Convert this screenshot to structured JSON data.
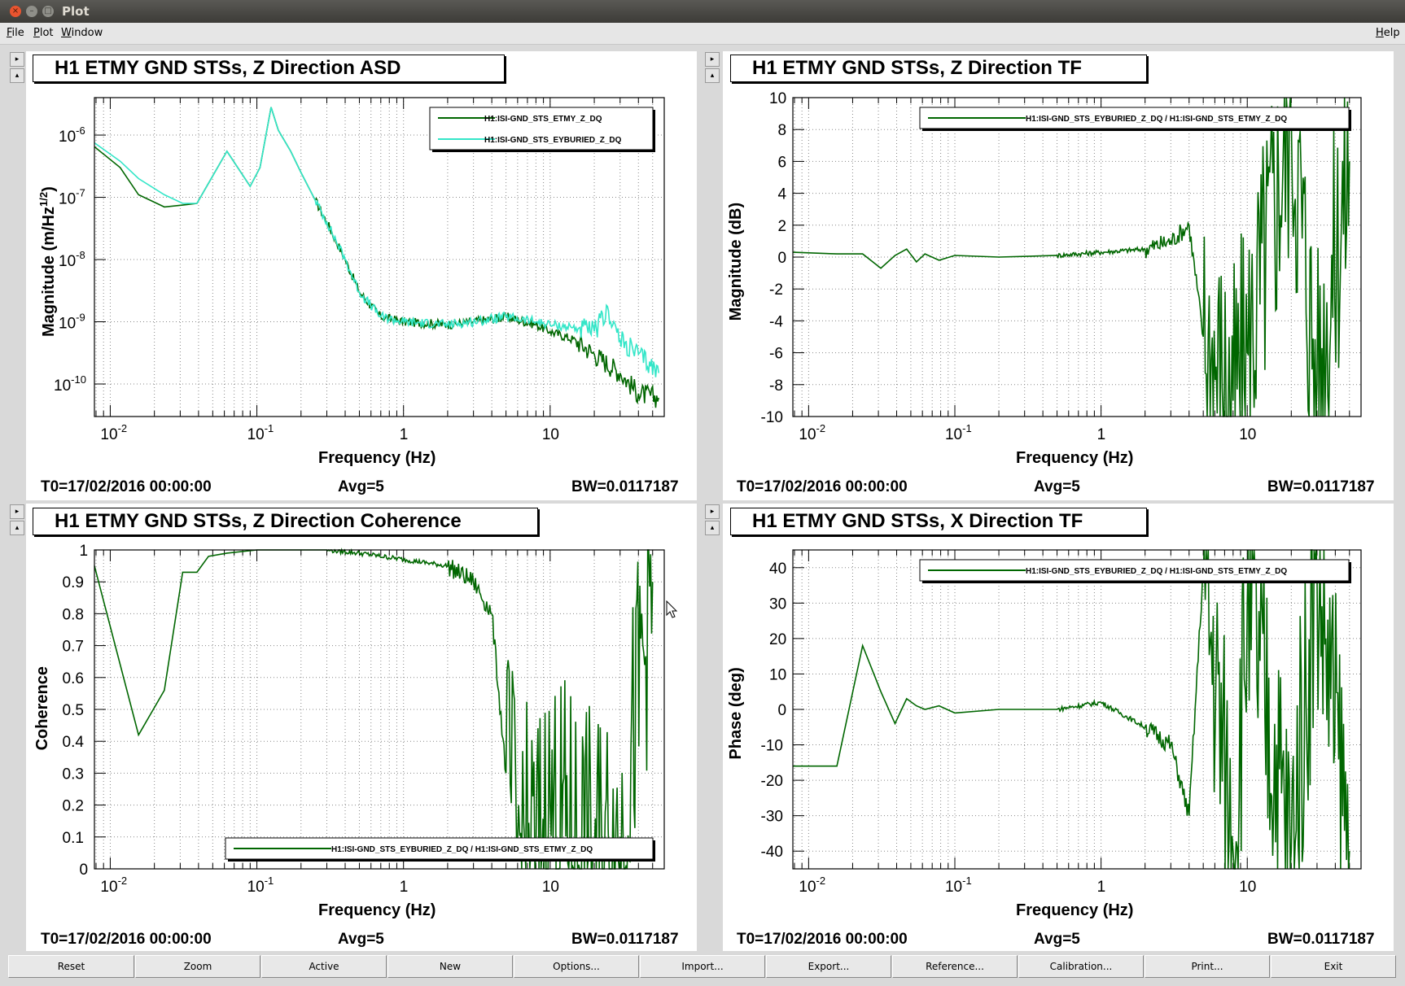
{
  "window": {
    "title": "Plot"
  },
  "menu": {
    "file": "File",
    "plot": "Plot",
    "window": "Window",
    "help": "Help"
  },
  "footer": {
    "t0": "T0=17/02/2016 00:00:00",
    "avg": "Avg=5",
    "bw": "BW=0.0117187"
  },
  "buttons": [
    "Reset",
    "Zoom",
    "Active",
    "New",
    "Options...",
    "Import...",
    "Export...",
    "Reference...",
    "Calibration...",
    "Print...",
    "Exit"
  ],
  "colors": {
    "dark_green": "#006600",
    "aqua": "#33e6c8"
  },
  "panels": [
    {
      "title": "H1 ETMY GND STSs, Z Direction ASD"
    },
    {
      "title": "H1 ETMY GND STSs, Z Direction TF"
    },
    {
      "title": "H1 ETMY GND STSs, Z Direction Coherence"
    },
    {
      "title": "H1 ETMY GND STSs, X Direction TF"
    }
  ],
  "chart_data": [
    {
      "type": "line",
      "title": "H1 ETMY GND STSs, Z Direction ASD",
      "xlabel": "Frequency (Hz)",
      "ylabel": "Magnitude (m/Hz^(1/2))",
      "xscale": "log",
      "yscale": "log",
      "xlim": [
        0.0078,
        60
      ],
      "ylim": [
        3e-11,
        4e-06
      ],
      "xticks": [
        "10^-2",
        "10^-1",
        "1",
        "10"
      ],
      "yticks": [
        "10^-6",
        "10^-7",
        "10^-8",
        "10^-9",
        "10^-10"
      ],
      "grid": true,
      "legend": "top-right",
      "series": [
        {
          "name": "H1:ISI-GND_STS_ETMY_Z_DQ",
          "color": "#006600",
          "x": [
            0.0078,
            0.0117,
            0.0156,
            0.0234,
            0.0312,
            0.039,
            0.0625,
            0.09,
            0.105,
            0.125,
            0.14,
            0.17,
            0.2,
            0.25,
            0.3,
            0.4,
            0.5,
            0.7,
            1,
            2,
            3,
            5,
            8,
            10,
            15,
            20,
            30,
            40,
            55
          ],
          "y": [
            6.5e-07,
            3e-07,
            1.1e-07,
            7e-08,
            7.5e-08,
            8e-08,
            5.5e-07,
            1.5e-07,
            3e-07,
            2.8e-06,
            1.2e-06,
            5.5e-07,
            2.5e-07,
            9e-08,
            4e-08,
            1e-08,
            3e-09,
            1.2e-09,
            1e-09,
            9e-10,
            1e-09,
            1.2e-09,
            9e-10,
            7e-10,
            5e-10,
            3e-10,
            1.5e-10,
            7e-11,
            6e-11
          ]
        },
        {
          "name": "H1:ISI-GND_STS_EYBURIED_Z_DQ",
          "color": "#33e6c8",
          "x": [
            0.0078,
            0.0117,
            0.0156,
            0.0234,
            0.0312,
            0.039,
            0.0625,
            0.09,
            0.105,
            0.125,
            0.14,
            0.17,
            0.2,
            0.25,
            0.3,
            0.4,
            0.5,
            0.7,
            1,
            2,
            3,
            5,
            8,
            10,
            15,
            20,
            25,
            30,
            40,
            55
          ],
          "y": [
            7.5e-07,
            3.8e-07,
            2e-07,
            1.1e-07,
            8e-08,
            8e-08,
            5.5e-07,
            1.5e-07,
            3e-07,
            2.8e-06,
            1.2e-06,
            5.5e-07,
            2.5e-07,
            9e-08,
            4e-08,
            1e-08,
            3e-09,
            1.2e-09,
            1e-09,
            9e-10,
            1e-09,
            1.2e-09,
            1e-09,
            9e-10,
            8e-10,
            7e-10,
            1.5e-09,
            5e-10,
            3e-10,
            1.5e-10
          ]
        }
      ]
    },
    {
      "type": "line",
      "title": "H1 ETMY GND STSs, Z Direction TF",
      "xlabel": "Frequency (Hz)",
      "ylabel": "Magnitude (dB)",
      "xscale": "log",
      "xlim": [
        0.0078,
        60
      ],
      "ylim": [
        -10,
        10
      ],
      "yticks": [
        10,
        8,
        6,
        4,
        2,
        0,
        -2,
        -4,
        -6,
        -8,
        -10
      ],
      "xticks": [
        "10^-2",
        "10^-1",
        "1",
        "10"
      ],
      "grid": true,
      "legend": "top-right",
      "series": [
        {
          "name": "H1:ISI-GND_STS_EYBURIED_Z_DQ / H1:ISI-GND_STS_ETMY_Z_DQ",
          "color": "#006600",
          "x": [
            0.0078,
            0.0156,
            0.0234,
            0.0312,
            0.039,
            0.0468,
            0.0546,
            0.0625,
            0.078,
            0.1,
            0.2,
            0.5,
            1,
            2,
            3,
            4,
            5,
            8,
            10,
            20,
            30,
            50
          ],
          "y": [
            0.3,
            0.2,
            0.2,
            -0.7,
            0.1,
            0.5,
            -0.3,
            0.2,
            -0.2,
            0.1,
            0,
            0.1,
            0.3,
            0.5,
            1,
            2,
            -5,
            -9,
            -6,
            9,
            -8,
            6
          ]
        }
      ]
    },
    {
      "type": "line",
      "title": "H1 ETMY GND STSs, Z Direction Coherence",
      "xlabel": "Frequency (Hz)",
      "ylabel": "Coherence",
      "xscale": "log",
      "xlim": [
        0.0078,
        60
      ],
      "ylim": [
        0,
        1
      ],
      "yticks": [
        0,
        0.1,
        0.2,
        0.3,
        0.4,
        0.5,
        0.6,
        0.7,
        0.8,
        0.9,
        1
      ],
      "xticks": [
        "10^-2",
        "10^-1",
        "1",
        "10"
      ],
      "grid": true,
      "legend": "bottom-right",
      "series": [
        {
          "name": "H1:ISI-GND_STS_EYBURIED_Z_DQ / H1:ISI-GND_STS_ETMY_Z_DQ",
          "color": "#006600",
          "x": [
            0.0078,
            0.0156,
            0.0234,
            0.0312,
            0.039,
            0.0468,
            0.0625,
            0.1,
            0.3,
            0.5,
            1,
            2,
            3,
            4,
            5,
            6,
            8,
            10,
            20,
            30,
            50
          ],
          "y": [
            0.95,
            0.42,
            0.56,
            0.93,
            0.93,
            0.98,
            0.99,
            1,
            1,
            0.99,
            0.97,
            0.95,
            0.9,
            0.8,
            0.3,
            0.1,
            0.05,
            0.2,
            0.05,
            0.1,
            0.9
          ]
        }
      ]
    },
    {
      "type": "line",
      "title": "H1 ETMY GND STSs, X Direction TF",
      "xlabel": "Frequency (Hz)",
      "ylabel": "Phase (deg)",
      "xscale": "log",
      "xlim": [
        0.0078,
        60
      ],
      "ylim": [
        -45,
        45
      ],
      "yticks": [
        40,
        30,
        20,
        10,
        0,
        -10,
        -20,
        -30,
        -40
      ],
      "xticks": [
        "10^-2",
        "10^-1",
        "1",
        "10"
      ],
      "grid": true,
      "legend": "top-right",
      "series": [
        {
          "name": "H1:ISI-GND_STS_EYBURIED_Z_DQ / H1:ISI-GND_STS_ETMY_Z_DQ",
          "color": "#006600",
          "x": [
            0.0078,
            0.0156,
            0.0234,
            0.0312,
            0.039,
            0.0468,
            0.0546,
            0.0625,
            0.078,
            0.1,
            0.2,
            0.5,
            1,
            2,
            3,
            4,
            5,
            8,
            10,
            20,
            30,
            50
          ],
          "y": [
            -16,
            -16,
            18,
            5,
            -4,
            3,
            1,
            0,
            1,
            -1,
            0,
            0,
            2,
            -5,
            -10,
            -30,
            40,
            -40,
            30,
            -40,
            40,
            -40
          ]
        }
      ]
    }
  ]
}
